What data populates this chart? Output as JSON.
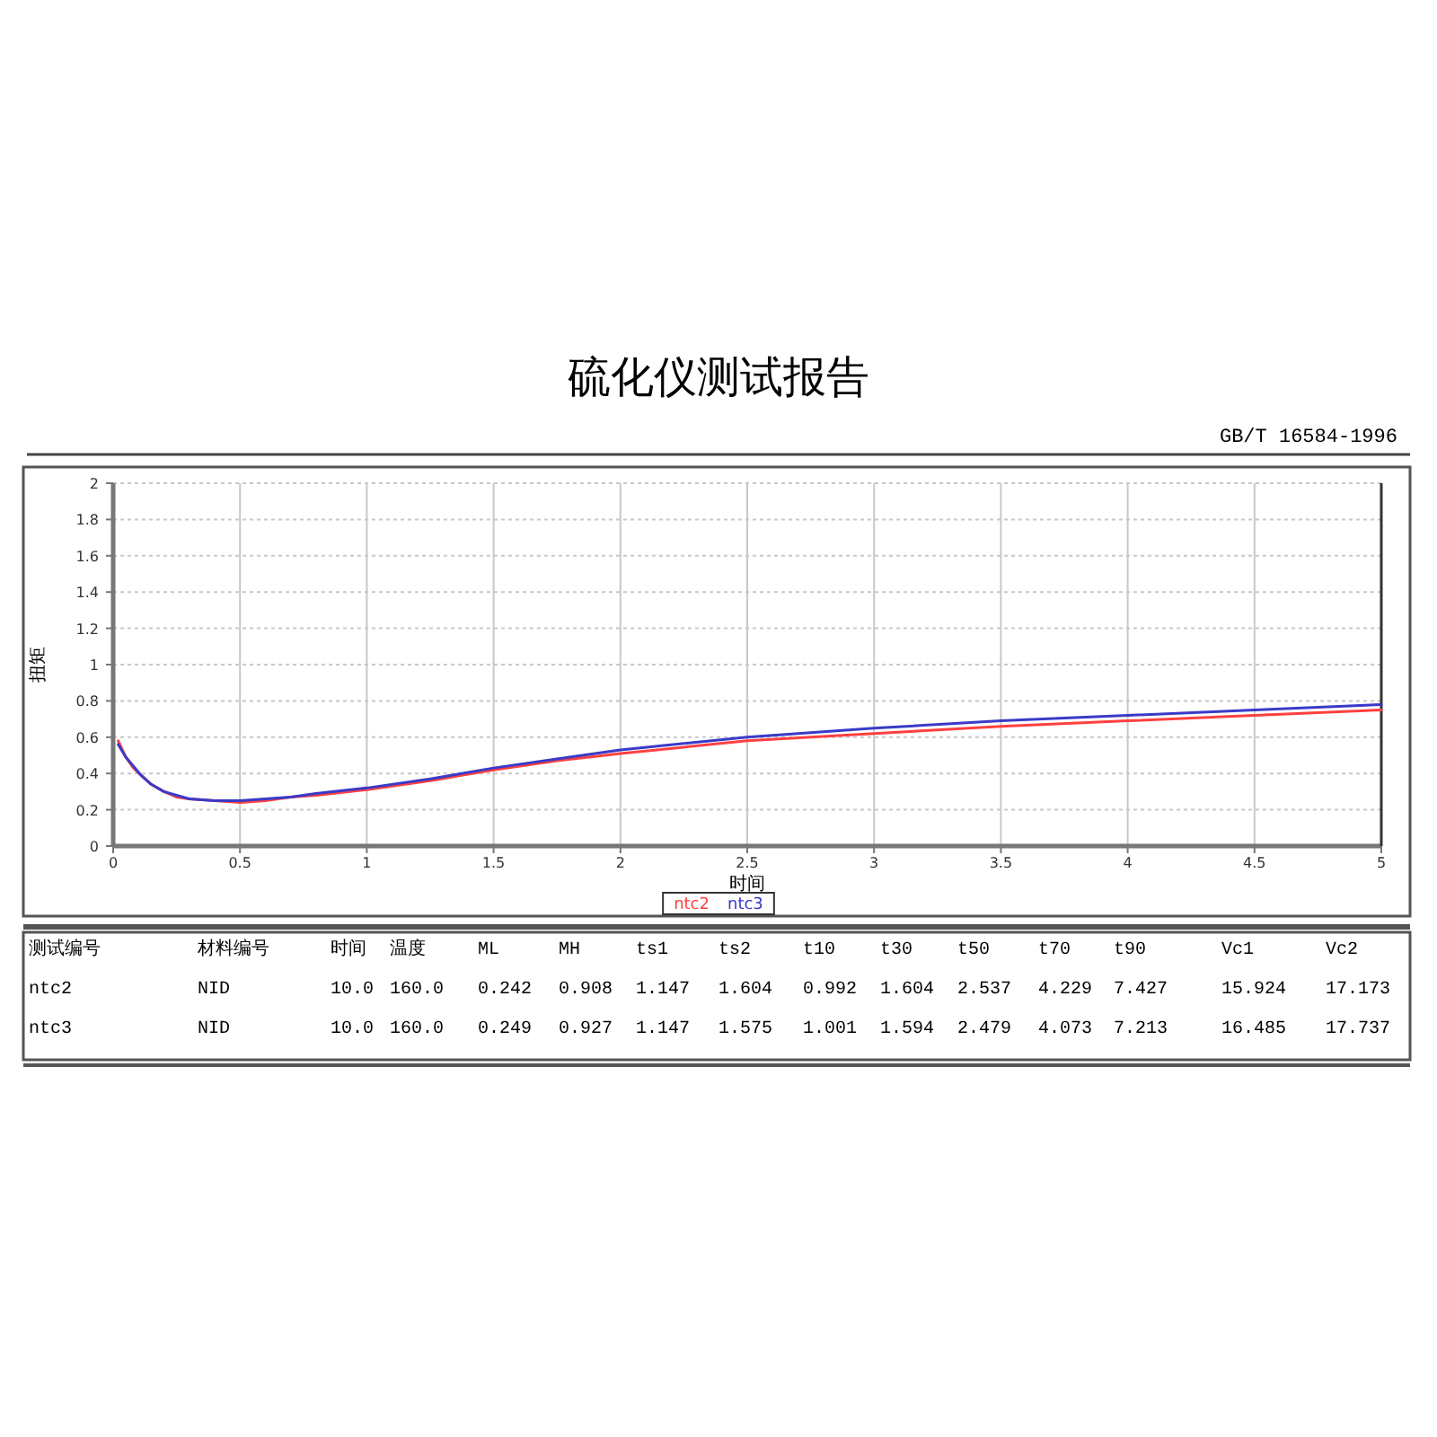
{
  "chart_data": {
    "type": "line",
    "title": "硫化仪测试报告",
    "subtitle": "GB/T 16584-1996",
    "xlabel": "时间",
    "ylabel": "扭矩",
    "x": [
      0.02,
      0.05,
      0.08,
      0.11,
      0.15,
      0.2,
      0.25,
      0.3,
      0.4,
      0.5,
      0.6,
      0.7,
      0.8,
      1.0,
      1.25,
      1.5,
      1.75,
      2.0,
      2.5,
      3.0,
      3.5,
      4.0,
      4.5,
      5.0
    ],
    "series": [
      {
        "name": "ntc2",
        "color": "#ff4040",
        "values": [
          0.58,
          0.49,
          0.43,
          0.39,
          0.34,
          0.3,
          0.27,
          0.26,
          0.25,
          0.24,
          0.25,
          0.27,
          0.28,
          0.31,
          0.36,
          0.42,
          0.47,
          0.51,
          0.58,
          0.62,
          0.66,
          0.69,
          0.72,
          0.75
        ]
      },
      {
        "name": "ntc3",
        "color": "#3a3ac8",
        "values": [
          0.56,
          0.49,
          0.44,
          0.39,
          0.34,
          0.3,
          0.28,
          0.26,
          0.25,
          0.25,
          0.26,
          0.27,
          0.29,
          0.32,
          0.37,
          0.43,
          0.48,
          0.53,
          0.6,
          0.65,
          0.69,
          0.72,
          0.75,
          0.78
        ]
      }
    ],
    "xlim": [
      0,
      5
    ],
    "ylim": [
      0,
      2
    ],
    "xticks": [
      0,
      0.5,
      1,
      1.5,
      2,
      2.5,
      3,
      3.5,
      4,
      4.5,
      5
    ],
    "yticks": [
      0,
      0.2,
      0.4,
      0.6,
      0.8,
      1,
      1.2,
      1.4,
      1.6,
      1.8,
      2
    ],
    "grid": true,
    "legend": "bottom",
    "annotations": [
      "测试编号",
      "材料编号",
      "时间",
      "温度",
      "ML",
      "MH",
      "ts1",
      "ts2",
      "t10",
      "t30",
      "t50",
      "t70",
      "t90",
      "Vc1",
      "Vc2",
      "ntc2",
      "NID",
      "10.0",
      "160.0",
      "0.242",
      "0.908",
      "1.147",
      "1.604",
      "0.992",
      "1.604",
      "2.537",
      "4.229",
      "7.427",
      "15.924",
      "17.173",
      "ntc3",
      "NID",
      "10.0",
      "160.0",
      "0.249",
      "0.927",
      "1.147",
      "1.575",
      "1.001",
      "1.594",
      "2.479",
      "4.073",
      "7.213",
      "16.485",
      "17.737"
    ]
  }
}
